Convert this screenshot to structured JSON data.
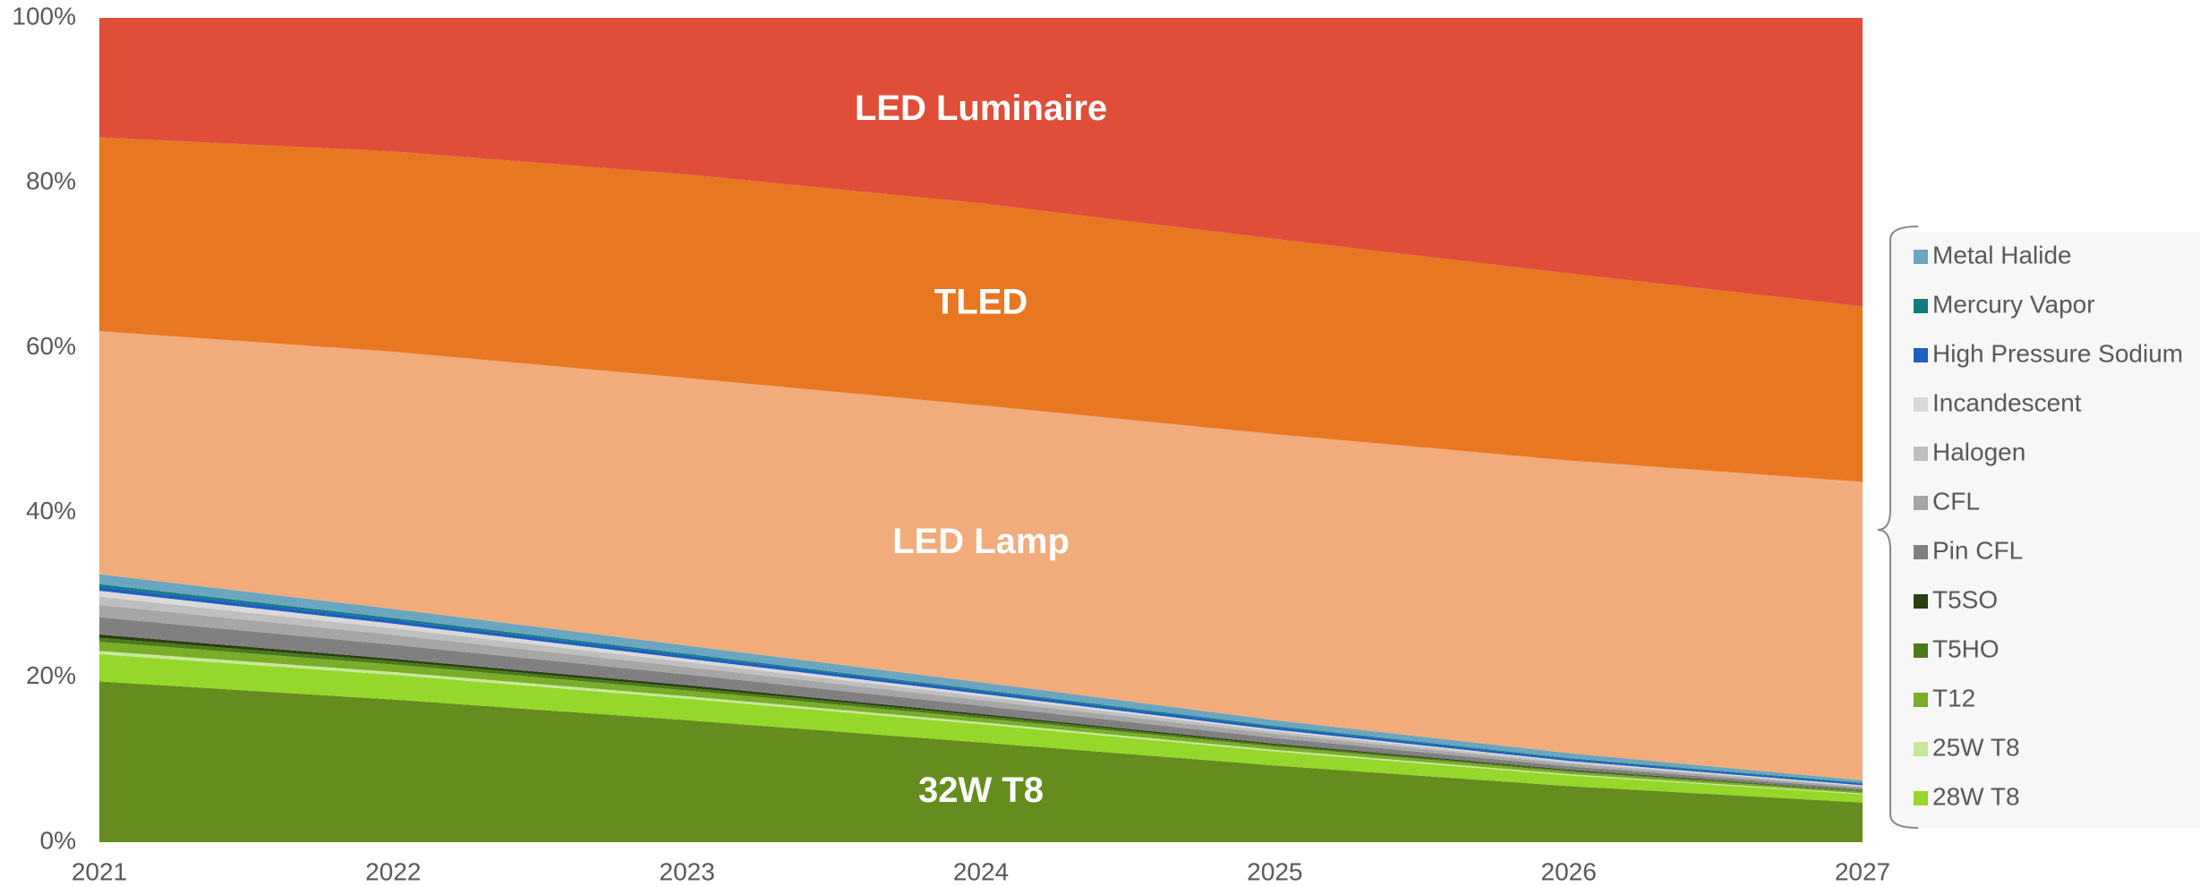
{
  "chart_data": {
    "type": "stacked_area",
    "categories": [
      "2021",
      "2022",
      "2023",
      "2024",
      "2025",
      "2026",
      "2027"
    ],
    "ylim": [
      0,
      100
    ],
    "yticks": [
      {
        "value": 0,
        "label": "0%"
      },
      {
        "value": 20,
        "label": "20%"
      },
      {
        "value": 40,
        "label": "40%"
      },
      {
        "value": 60,
        "label": "60%"
      },
      {
        "value": 80,
        "label": "80%"
      },
      {
        "value": 100,
        "label": "100%"
      }
    ],
    "legend": "right",
    "series": [
      {
        "name": "32W T8",
        "color": "#658c1e",
        "label_inside": true,
        "values": [
          19.5,
          17.3,
          14.8,
          12.1,
          9.3,
          6.8,
          4.8
        ]
      },
      {
        "name": "28W T8",
        "color": "#95d72a",
        "values": [
          3.3,
          3.0,
          2.6,
          2.2,
          1.7,
          1.3,
          1.0
        ]
      },
      {
        "name": "25W T8",
        "color": "#c5e89a",
        "values": [
          0.4,
          0.35,
          0.3,
          0.25,
          0.2,
          0.15,
          0.1
        ]
      },
      {
        "name": "T12",
        "color": "#7aad2a",
        "values": [
          1.1,
          0.9,
          0.7,
          0.5,
          0.4,
          0.3,
          0.2
        ]
      },
      {
        "name": "T5HO",
        "color": "#4b7a1a",
        "values": [
          0.5,
          0.4,
          0.35,
          0.3,
          0.2,
          0.15,
          0.1
        ]
      },
      {
        "name": "T5SO",
        "color": "#2a4010",
        "values": [
          0.4,
          0.3,
          0.3,
          0.2,
          0.15,
          0.1,
          0.05
        ]
      },
      {
        "name": "Pin CFL",
        "color": "#808080",
        "values": [
          2.1,
          1.7,
          1.3,
          1.0,
          0.7,
          0.4,
          0.25
        ]
      },
      {
        "name": "CFL",
        "color": "#a6a6a6",
        "values": [
          1.5,
          1.2,
          0.9,
          0.7,
          0.5,
          0.3,
          0.2
        ]
      },
      {
        "name": "Halogen",
        "color": "#bfbfbf",
        "values": [
          1.0,
          0.8,
          0.6,
          0.45,
          0.3,
          0.2,
          0.1
        ]
      },
      {
        "name": "Incandescent",
        "color": "#d9d9d9",
        "values": [
          0.7,
          0.55,
          0.4,
          0.3,
          0.2,
          0.15,
          0.1
        ]
      },
      {
        "name": "High Pressure Sodium",
        "color": "#1f5fbf",
        "values": [
          0.5,
          0.45,
          0.4,
          0.35,
          0.3,
          0.25,
          0.2
        ]
      },
      {
        "name": "Mercury Vapor",
        "color": "#107c80",
        "values": [
          0.3,
          0.25,
          0.2,
          0.15,
          0.15,
          0.1,
          0.1
        ]
      },
      {
        "name": "Metal Halide",
        "color": "#6aa6bf",
        "values": [
          1.2,
          1.1,
          1.0,
          0.9,
          0.7,
          0.6,
          0.3
        ]
      },
      {
        "name": "LED Lamp",
        "color": "#f2ac7b",
        "label_inside": true,
        "values": [
          29.5,
          31.2,
          32.45,
          33.6,
          34.7,
          35.5,
          36.2
        ]
      },
      {
        "name": "TLED",
        "color": "#e87722",
        "label_inside": true,
        "values": [
          23.5,
          24.3,
          24.7,
          24.5,
          23.7,
          22.7,
          21.3
        ]
      },
      {
        "name": "LED Luminaire",
        "color": "#e04e39",
        "label_inside": true,
        "values": [
          14.5,
          16.2,
          19.0,
          22.5,
          26.8,
          31.0,
          35.0
        ]
      }
    ]
  }
}
